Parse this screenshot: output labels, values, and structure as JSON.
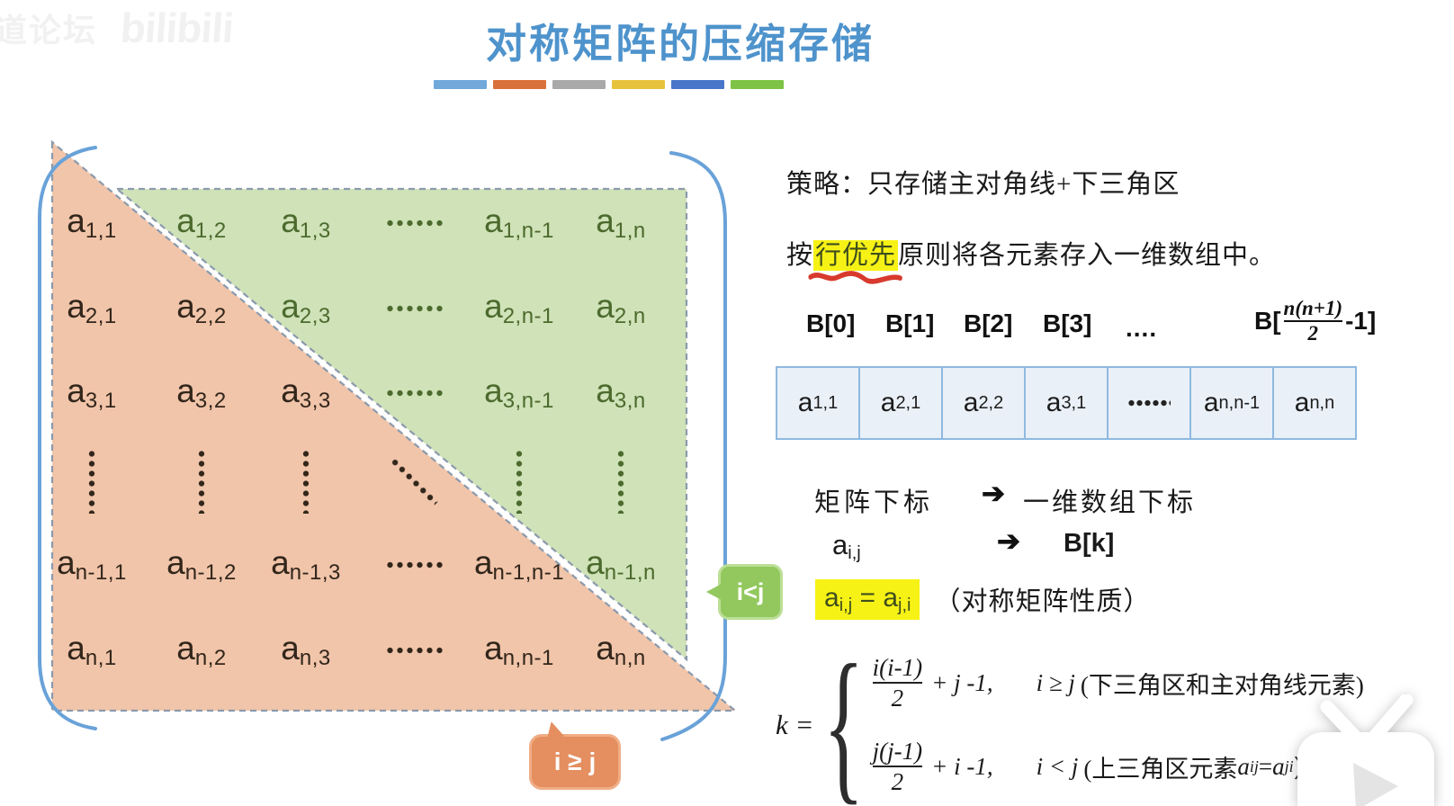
{
  "watermark": {
    "prefix": "道论坛",
    "brand": "bilibili"
  },
  "title": "对称矩阵的压缩存储",
  "bars": [
    "#71a9da",
    "#d9713c",
    "#a9a9a9",
    "#e7c33d",
    "#4a76c9",
    "#7dc345"
  ],
  "matrix": {
    "fill_lower": "#f1c5aa",
    "fill_upper": "#cfe2b8",
    "rows": [
      [
        {
          "type": "sym",
          "base": "a",
          "sub": "1,1",
          "tone": "dark"
        },
        {
          "type": "sym",
          "base": "a",
          "sub": "1,2",
          "tone": "green"
        },
        {
          "type": "sym",
          "base": "a",
          "sub": "1,3",
          "tone": "green"
        },
        {
          "type": "hdots",
          "tone": "green"
        },
        {
          "type": "sym",
          "base": "a",
          "sub": "1,n-1",
          "tone": "green"
        },
        {
          "type": "sym",
          "base": "a",
          "sub": "1,n",
          "tone": "green"
        }
      ],
      [
        {
          "type": "sym",
          "base": "a",
          "sub": "2,1",
          "tone": "dark"
        },
        {
          "type": "sym",
          "base": "a",
          "sub": "2,2",
          "tone": "dark"
        },
        {
          "type": "sym",
          "base": "a",
          "sub": "2,3",
          "tone": "green"
        },
        {
          "type": "hdots",
          "tone": "green"
        },
        {
          "type": "sym",
          "base": "a",
          "sub": "2,n-1",
          "tone": "green"
        },
        {
          "type": "sym",
          "base": "a",
          "sub": "2,n",
          "tone": "green"
        }
      ],
      [
        {
          "type": "sym",
          "base": "a",
          "sub": "3,1",
          "tone": "dark"
        },
        {
          "type": "sym",
          "base": "a",
          "sub": "3,2",
          "tone": "dark"
        },
        {
          "type": "sym",
          "base": "a",
          "sub": "3,3",
          "tone": "dark"
        },
        {
          "type": "hdots",
          "tone": "green"
        },
        {
          "type": "sym",
          "base": "a",
          "sub": "3,n-1",
          "tone": "green"
        },
        {
          "type": "sym",
          "base": "a",
          "sub": "3,n",
          "tone": "green"
        }
      ],
      [
        {
          "type": "vdots",
          "tone": "dark"
        },
        {
          "type": "vdots",
          "tone": "dark"
        },
        {
          "type": "vdots",
          "tone": "dark"
        },
        {
          "type": "ddots",
          "tone": "dark"
        },
        {
          "type": "vdots",
          "tone": "green"
        },
        {
          "type": "vdots",
          "tone": "green"
        }
      ],
      [
        {
          "type": "sym",
          "base": "a",
          "sub": "n-1,1",
          "tone": "dark"
        },
        {
          "type": "sym",
          "base": "a",
          "sub": "n-1,2",
          "tone": "dark"
        },
        {
          "type": "sym",
          "base": "a",
          "sub": "n-1,3",
          "tone": "dark"
        },
        {
          "type": "hdots",
          "tone": "dark"
        },
        {
          "type": "sym",
          "base": "a",
          "sub": "n-1,n-1",
          "tone": "dark"
        },
        {
          "type": "sym",
          "base": "a",
          "sub": "n-1,n",
          "tone": "green"
        }
      ],
      [
        {
          "type": "sym",
          "base": "a",
          "sub": "n,1",
          "tone": "dark"
        },
        {
          "type": "sym",
          "base": "a",
          "sub": "n,2",
          "tone": "dark"
        },
        {
          "type": "sym",
          "base": "a",
          "sub": "n,3",
          "tone": "dark"
        },
        {
          "type": "hdots",
          "tone": "dark"
        },
        {
          "type": "sym",
          "base": "a",
          "sub": "n,n-1",
          "tone": "dark"
        },
        {
          "type": "sym",
          "base": "a",
          "sub": "n,n",
          "tone": "dark"
        }
      ]
    ],
    "callout_upper": "i<j",
    "callout_lower": "i ≥ j"
  },
  "right": {
    "strategy": "策略：只存储主对角线+下三角区",
    "rule_prefix": "按",
    "rule_highlight": "行优先",
    "rule_suffix": "原则将各元素存入一维数组中。",
    "b_labels": [
      "B[0]",
      "B[1]",
      "B[2]",
      "B[3]",
      "...."
    ],
    "b_last": {
      "pre": "B[",
      "num": "n(n+1)",
      "den": "2",
      "post": "-1]"
    },
    "array_cells": [
      {
        "base": "a",
        "sub": "1,1"
      },
      {
        "base": "a",
        "sub": "2,1"
      },
      {
        "base": "a",
        "sub": "2,2"
      },
      {
        "base": "a",
        "sub": "3,1"
      },
      {
        "dots": true
      },
      {
        "base": "a",
        "sub": "n,n-1"
      },
      {
        "base": "a",
        "sub": "n,n"
      }
    ],
    "map1": {
      "left": "矩阵下标",
      "arrow": "➔",
      "right": "一维数组下标"
    },
    "map2": {
      "base": "a",
      "sub": "i,j",
      "arrow": "➔",
      "right": "B[k]"
    },
    "prop": {
      "a1": "a",
      "s1": "i,j",
      "eq": " = ",
      "a2": "a",
      "s2": "j,i",
      "rest": "（对称矩阵性质）"
    },
    "formula": {
      "k": "k =",
      "line1": {
        "num": "i(i-1)",
        "den": "2",
        "tail": "+ j -1,",
        "cond_math": "i ≥ j",
        "cond_text": "(下三角区和主对角线元素)"
      },
      "line2": {
        "num": "j(j-1)",
        "den": "2",
        "tail": "+ i -1,",
        "cond_math": "i < j",
        "cond_text": "(上三角区元素",
        "a1": "a",
        "s1": "ij",
        "eq": " = ",
        "a2": "a",
        "s2": "ji",
        "post": "）"
      }
    }
  }
}
